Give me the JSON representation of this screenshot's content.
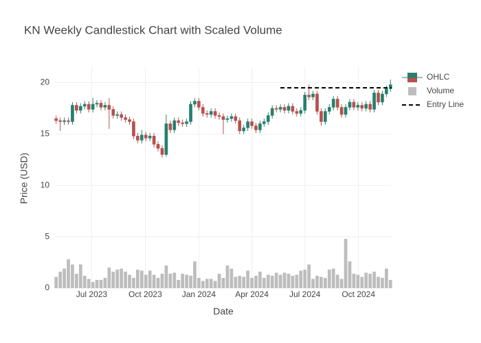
{
  "chart_data": {
    "type": "candlestick",
    "title": "KN Weekly Candlestick Chart with Scaled Volume",
    "x_label": "Date",
    "y_label": "Price (USD)",
    "x": [
      "2023-05-01",
      "2023-05-08",
      "2023-05-15",
      "2023-05-22",
      "2023-05-29",
      "2023-06-05",
      "2023-06-12",
      "2023-06-19",
      "2023-06-26",
      "2023-07-03",
      "2023-07-10",
      "2023-07-17",
      "2023-07-24",
      "2023-07-31",
      "2023-08-07",
      "2023-08-14",
      "2023-08-21",
      "2023-08-28",
      "2023-09-04",
      "2023-09-11",
      "2023-09-18",
      "2023-09-25",
      "2023-10-02",
      "2023-10-09",
      "2023-10-16",
      "2023-10-23",
      "2023-10-30",
      "2023-11-06",
      "2023-11-13",
      "2023-11-20",
      "2023-11-27",
      "2023-12-04",
      "2023-12-11",
      "2023-12-18",
      "2023-12-25",
      "2024-01-01",
      "2024-01-08",
      "2024-01-15",
      "2024-01-22",
      "2024-01-29",
      "2024-02-05",
      "2024-02-12",
      "2024-02-19",
      "2024-02-26",
      "2024-03-04",
      "2024-03-11",
      "2024-03-18",
      "2024-03-25",
      "2024-04-01",
      "2024-04-08",
      "2024-04-15",
      "2024-04-22",
      "2024-04-29",
      "2024-05-06",
      "2024-05-13",
      "2024-05-20",
      "2024-05-27",
      "2024-06-03",
      "2024-06-10",
      "2024-06-17",
      "2024-06-24",
      "2024-07-01",
      "2024-07-08",
      "2024-07-15",
      "2024-07-22",
      "2024-07-29",
      "2024-08-05",
      "2024-08-12",
      "2024-08-19",
      "2024-08-26",
      "2024-09-02",
      "2024-09-09",
      "2024-09-16",
      "2024-09-23",
      "2024-09-30",
      "2024-10-07",
      "2024-10-14",
      "2024-10-21",
      "2024-10-28",
      "2024-11-04",
      "2024-11-11",
      "2024-11-18",
      "2024-11-25"
    ],
    "xlim": [
      "2023-04-29",
      "2024-11-27"
    ],
    "xticks": [
      {
        "value": "2023-07-01",
        "label": "Jul 2023"
      },
      {
        "value": "2023-10-01",
        "label": "Oct 2023"
      },
      {
        "value": "2024-01-01",
        "label": "Jan 2024"
      },
      {
        "value": "2024-04-01",
        "label": "Apr 2024"
      },
      {
        "value": "2024-07-01",
        "label": "Jul 2024"
      },
      {
        "value": "2024-10-01",
        "label": "Oct 2024"
      }
    ],
    "ylim": [
      0,
      21.5
    ],
    "yticks": [
      0,
      5,
      10,
      15,
      20
    ],
    "grid": true,
    "legend_position": "right",
    "series": [
      {
        "name": "OHLC",
        "type": "candlestick",
        "increasing_color": "#26806e",
        "decreasing_color": "#b5514e",
        "open": [
          16.5,
          16.3,
          16.2,
          16.3,
          16.2,
          17.8,
          17.3,
          17.7,
          17.9,
          17.4,
          17.9,
          18.0,
          17.6,
          17.8,
          17.4,
          16.8,
          16.9,
          16.6,
          16.4,
          16.2,
          14.8,
          14.4,
          14.9,
          14.6,
          14.8,
          14.0,
          13.6,
          13.0,
          16.0,
          15.4,
          16.3,
          16.1,
          16.0,
          16.2,
          17.9,
          18.2,
          17.6,
          17.0,
          16.9,
          17.2,
          16.8,
          16.7,
          16.4,
          16.5,
          16.7,
          16.3,
          15.3,
          15.6,
          16.2,
          15.8,
          15.4,
          16.0,
          16.2,
          16.8,
          17.5,
          17.4,
          17.6,
          17.3,
          17.7,
          17.2,
          17.0,
          17.3,
          18.8,
          18.6,
          18.9,
          17.2,
          16.2,
          17.2,
          17.6,
          18.4,
          17.6,
          16.9,
          17.6,
          18.1,
          17.6,
          17.8,
          17.5,
          17.9,
          17.4,
          19.0,
          18.1,
          18.9,
          19.4
        ],
        "high": [
          16.8,
          16.6,
          16.6,
          16.6,
          18.1,
          18.1,
          18.0,
          18.2,
          18.2,
          18.5,
          18.3,
          18.3,
          18.1,
          18.5,
          17.7,
          17.2,
          17.2,
          16.9,
          16.7,
          16.5,
          15.1,
          15.4,
          15.2,
          15.1,
          15.1,
          14.3,
          13.9,
          16.9,
          16.3,
          16.6,
          16.6,
          16.4,
          16.5,
          18.2,
          18.5,
          18.5,
          17.9,
          17.3,
          17.5,
          17.5,
          17.1,
          17.0,
          16.8,
          17.0,
          17.0,
          16.6,
          15.9,
          16.5,
          16.5,
          16.1,
          16.3,
          16.5,
          17.1,
          17.8,
          17.8,
          17.9,
          17.9,
          18.0,
          18.0,
          17.5,
          17.6,
          19.1,
          19.8,
          19.2,
          19.2,
          17.5,
          17.5,
          17.9,
          18.7,
          18.7,
          17.9,
          17.9,
          18.4,
          18.4,
          18.1,
          18.1,
          18.2,
          18.2,
          19.3,
          19.3,
          19.2,
          19.7,
          20.3
        ],
        "low": [
          16.0,
          15.3,
          15.9,
          15.9,
          15.9,
          17.0,
          17.0,
          17.4,
          17.1,
          17.1,
          17.6,
          17.3,
          17.3,
          15.5,
          16.5,
          16.5,
          16.3,
          16.1,
          15.9,
          14.5,
          14.1,
          14.1,
          14.3,
          14.3,
          13.7,
          13.3,
          12.7,
          12.8,
          15.1,
          15.1,
          15.8,
          15.7,
          15.7,
          15.9,
          17.6,
          17.3,
          16.7,
          16.6,
          16.6,
          16.5,
          16.4,
          15.0,
          16.1,
          16.2,
          16.0,
          15.0,
          15.0,
          15.3,
          15.5,
          15.1,
          15.1,
          15.7,
          15.9,
          16.5,
          17.1,
          17.1,
          17.0,
          17.0,
          16.9,
          16.7,
          16.7,
          17.0,
          18.3,
          18.3,
          16.9,
          15.8,
          15.9,
          16.9,
          17.3,
          17.3,
          16.6,
          16.6,
          17.3,
          17.3,
          17.3,
          17.2,
          17.2,
          17.1,
          17.1,
          17.8,
          17.8,
          18.6,
          19.1
        ],
        "close": [
          16.3,
          16.2,
          16.3,
          16.2,
          17.8,
          17.3,
          17.7,
          17.9,
          17.4,
          17.9,
          18.0,
          17.6,
          17.8,
          17.4,
          16.8,
          16.9,
          16.6,
          16.4,
          16.2,
          14.8,
          14.4,
          14.9,
          14.6,
          14.8,
          14.0,
          13.6,
          13.0,
          16.0,
          15.4,
          16.3,
          16.1,
          16.0,
          16.2,
          17.9,
          18.2,
          17.6,
          17.0,
          16.9,
          17.2,
          16.8,
          16.7,
          16.4,
          16.5,
          16.7,
          16.3,
          15.3,
          15.6,
          16.2,
          15.8,
          15.4,
          16.0,
          16.2,
          16.8,
          17.5,
          17.4,
          17.6,
          17.3,
          17.7,
          17.2,
          17.0,
          17.3,
          18.8,
          18.6,
          18.9,
          17.2,
          16.2,
          17.2,
          17.6,
          18.4,
          17.6,
          16.9,
          17.6,
          18.1,
          17.6,
          17.8,
          17.5,
          17.9,
          17.4,
          19.0,
          18.1,
          18.9,
          19.4,
          19.8
        ]
      },
      {
        "name": "Volume",
        "type": "bar",
        "color": "#bdbdbd",
        "values": [
          1.1,
          1.6,
          1.9,
          2.8,
          2.3,
          1.4,
          2.3,
          1.2,
          0.9,
          0.6,
          0.8,
          0.8,
          1.0,
          2.0,
          1.6,
          1.8,
          1.9,
          1.6,
          1.3,
          1.0,
          1.8,
          1.7,
          1.3,
          1.7,
          1.3,
          1.0,
          1.4,
          2.2,
          1.4,
          1.5,
          0.8,
          1.4,
          1.3,
          1.2,
          2.6,
          1.0,
          0.7,
          0.9,
          0.9,
          0.7,
          1.4,
          1.0,
          2.2,
          1.9,
          1.1,
          1.2,
          1.1,
          1.7,
          1.0,
          1.2,
          1.6,
          1.0,
          1.3,
          1.2,
          1.5,
          1.3,
          1.5,
          1.4,
          1.2,
          1.3,
          1.7,
          1.8,
          2.3,
          0.9,
          1.2,
          1.1,
          1.0,
          1.8,
          1.9,
          1.3,
          0.9,
          4.8,
          2.6,
          1.4,
          1.3,
          1.1,
          1.5,
          1.4,
          1.6,
          1.1,
          1.0,
          1.9,
          0.8
        ]
      },
      {
        "name": "Entry Line",
        "type": "line",
        "color": "#000000",
        "dash": true,
        "x": [
          "2024-05-20",
          "2024-11-27"
        ],
        "values": [
          19.5,
          19.5
        ]
      }
    ]
  }
}
